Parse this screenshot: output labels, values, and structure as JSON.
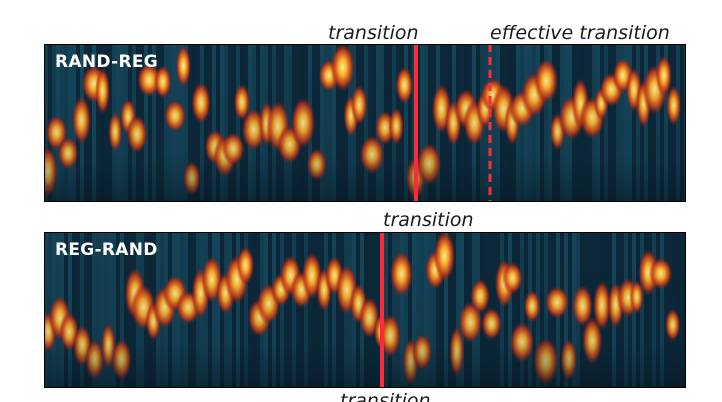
{
  "panels": [
    {
      "label": "RAND-REG",
      "annotations": {
        "transition": "transition",
        "effective_transition": "effective transition"
      }
    },
    {
      "label": "REG-RAND",
      "annotations": {
        "transition": "transition"
      }
    }
  ],
  "bottom_caption_cut": "transition",
  "colors": {
    "background": "#0d2a3c",
    "band_dark": "#07202f",
    "band_light": "#1c5a70",
    "blob_core": "#fff3a0",
    "blob_mid": "#ffb12a",
    "blob_edge": "#d9401a",
    "transition_line": "#ff2a3c"
  }
}
